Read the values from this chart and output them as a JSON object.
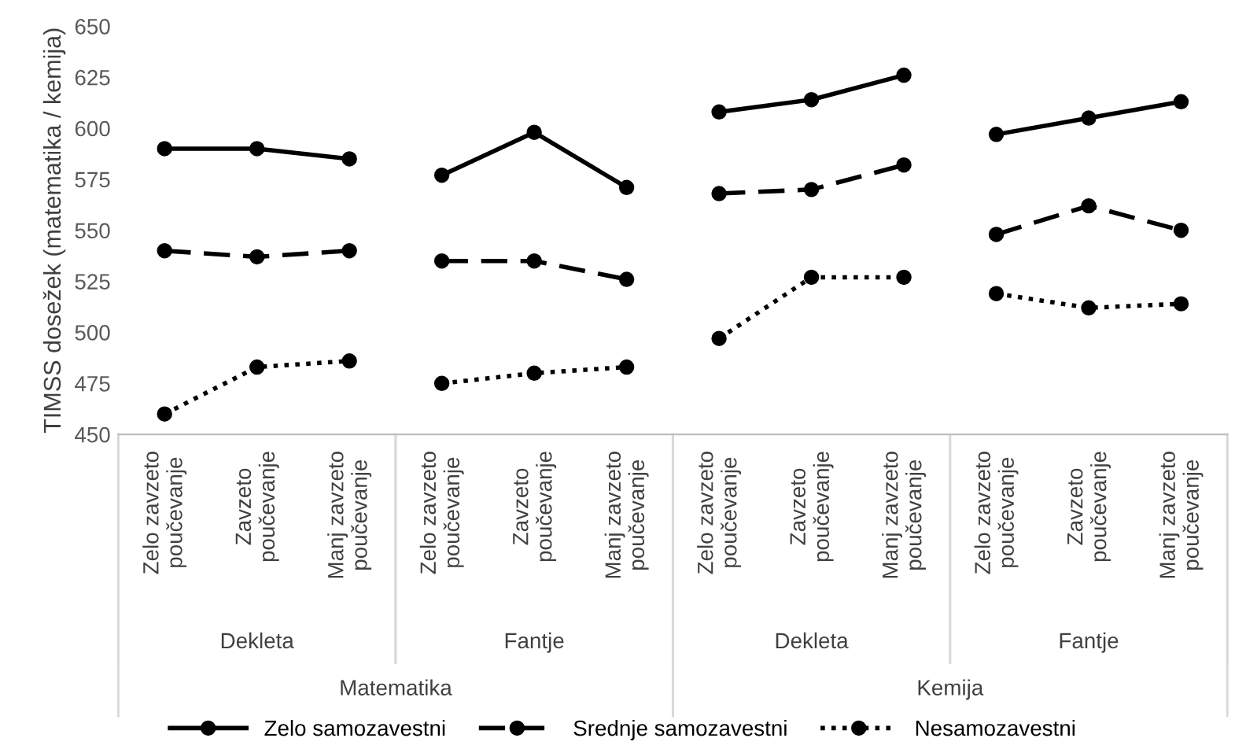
{
  "chart_data": {
    "type": "line",
    "ylabel": "TIMSS dosežek (matematika / kemija)",
    "categories": [
      "Zelo zavzeto poučevanje",
      "Zavzeto poučevanje",
      "Manj zavzeto poučevanje",
      "Zelo zavzeto poučevanje",
      "Zavzeto poučevanje",
      "Manj zavzeto poučevanje",
      "Zelo zavzeto poučevanje",
      "Zavzeto poučevanje",
      "Manj zavzeto poučevanje",
      "Zelo zavzeto poučevanje",
      "Zavzeto poučevanje",
      "Manj zavzeto poučevanje"
    ],
    "series": [
      {
        "name": "Zelo samozavestni",
        "color": "#000000",
        "line_style": "solid",
        "values": [
          590,
          590,
          585,
          null,
          null,
          null,
          null,
          null,
          null,
          null,
          null,
          null
        ]
      },
      {
        "color": "#000000",
        "line_style": "solid",
        "values": [
          null,
          null,
          null,
          577,
          598,
          571,
          null,
          null,
          null,
          null,
          null,
          null
        ]
      },
      {
        "color": "#000000",
        "line_style": "solid",
        "values": [
          null,
          null,
          null,
          null,
          null,
          null,
          608,
          614,
          626,
          null,
          null,
          null
        ]
      },
      {
        "color": "#000000",
        "line_style": "solid",
        "values": [
          null,
          null,
          null,
          null,
          null,
          null,
          null,
          null,
          null,
          597,
          605,
          613
        ]
      },
      {
        "name": "Srednje samozavestni",
        "color": "#000000",
        "line_style": "dashed",
        "values": [
          540,
          537,
          540,
          null,
          null,
          null,
          null,
          null,
          null,
          null,
          null,
          null
        ]
      },
      {
        "color": "#000000",
        "line_style": "dashed",
        "values": [
          null,
          null,
          null,
          535,
          535,
          526,
          null,
          null,
          null,
          null,
          null,
          null
        ]
      },
      {
        "color": "#000000",
        "line_style": "dashed",
        "values": [
          null,
          null,
          null,
          null,
          null,
          null,
          568,
          570,
          582,
          null,
          null,
          null
        ]
      },
      {
        "color": "#000000",
        "line_style": "dashed",
        "values": [
          null,
          null,
          null,
          null,
          null,
          null,
          null,
          null,
          null,
          548,
          562,
          550
        ]
      },
      {
        "name": "Nesamozavestni",
        "color": "#000000",
        "line_style": "dotted",
        "values": [
          460,
          483,
          486,
          null,
          null,
          null,
          null,
          null,
          null,
          null,
          null,
          null
        ]
      },
      {
        "color": "#000000",
        "line_style": "dotted",
        "values": [
          null,
          null,
          null,
          475,
          480,
          483,
          null,
          null,
          null,
          null,
          null,
          null
        ]
      },
      {
        "color": "#000000",
        "line_style": "dotted",
        "values": [
          null,
          null,
          null,
          null,
          null,
          null,
          497,
          527,
          527,
          null,
          null,
          null
        ]
      },
      {
        "color": "#000000",
        "line_style": "dotted",
        "values": [
          null,
          null,
          null,
          null,
          null,
          null,
          null,
          null,
          null,
          519,
          512,
          514
        ]
      }
    ],
    "marker": "circle",
    "ylim": [
      450,
      650
    ],
    "yticks": [
      450,
      475,
      500,
      525,
      550,
      575,
      600,
      625,
      650
    ],
    "grid": false,
    "legend": "bottom",
    "annotations": [
      "Dekleta",
      "Fantje",
      "Dekleta",
      "Fantje",
      "Matematika",
      "Kemija"
    ]
  }
}
